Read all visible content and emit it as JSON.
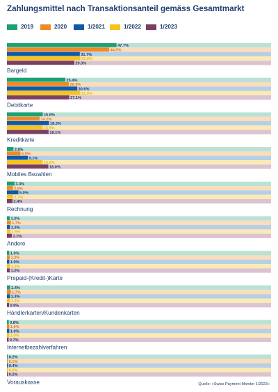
{
  "chart_data": {
    "type": "bar",
    "title": "Zahlungsmittel nach Transaktionsanteil gemäss Gesamtmarkt",
    "source": "Quelle: «Swiss Payment Monitor 1/2023»",
    "categories": [
      "Bargeld",
      "Debitkarte",
      "Kreditkarte",
      "Mobiles Bezahlen",
      "Rechnung",
      "Andere",
      "Prepaid-(Kredit-)Karte",
      "Händlerkarten/Kundenkarten",
      "Internetbezahlverfahren",
      "Vorauskasse"
    ],
    "series": [
      {
        "name": "2019",
        "color": "#1aa176",
        "light": "#b9e2d6",
        "values": [
          47.7,
          25.4,
          15.6,
          2.8,
          3.3,
          1.2,
          1.0,
          1.4,
          0.8,
          0.2
        ],
        "labels": [
          "47.7%",
          "25.4%",
          "15.6%",
          "2.8%",
          "3.3%",
          "1.2%",
          "1.0%",
          "1.4%",
          "0.8%",
          "0.2%"
        ]
      },
      {
        "name": "2020",
        "color": "#f08a24",
        "light": "#fbdcbc",
        "values": [
          44.5,
          26.9,
          14.2,
          5.9,
          2.6,
          1.7,
          1.2,
          1.7,
          1.0,
          0.1
        ],
        "labels": [
          "44.5%",
          "26.9%",
          "14.2%",
          "5.9%",
          "2.6%",
          "1.7%",
          "1.2%",
          "1.7%",
          "1.0%",
          "0.1%"
        ]
      },
      {
        "name": "1/2021",
        "color": "#0f5aa8",
        "light": "#b5cfe6",
        "values": [
          31.7,
          30.6,
          18.3,
          9.1,
          5.0,
          1.3,
          1.0,
          1.3,
          1.0,
          0.4
        ],
        "labels": [
          "31.7%",
          "30.6%",
          "18.3%",
          "9.1%",
          "5.0%",
          "1.3%",
          "1.0%",
          "1.3%",
          "1.0%",
          "0.4%"
        ]
      },
      {
        "name": "1/2022",
        "color": "#f7c31d",
        "light": "#fbeab4",
        "values": [
          31.9,
          31.9,
          15.5,
          15.5,
          2.7,
          1.5,
          1.3,
          1.3,
          1.0,
          0.3
        ],
        "labels": [
          "31.9%",
          "31.9%",
          "15.5%",
          "15.5%",
          "2.7%",
          "1.5%",
          "1.3%",
          "1.3%",
          "1.0%",
          "0.3%"
        ]
      },
      {
        "name": "1/2023",
        "color": "#7b3f63",
        "light": "#dcc3d2",
        "values": [
          29.3,
          27.1,
          18.1,
          18.0,
          2.4,
          2.1,
          1.2,
          0.9,
          0.7,
          0.2
        ],
        "labels": [
          "29.3%",
          "27.1%",
          "18.1%",
          "18.0%",
          "2.4%",
          "2.1%",
          "1.2%",
          "0.9%",
          "0.7%",
          "0.2%"
        ]
      }
    ],
    "xlim": [
      0,
      100
    ],
    "grid": false,
    "legend_position": "top-left"
  }
}
